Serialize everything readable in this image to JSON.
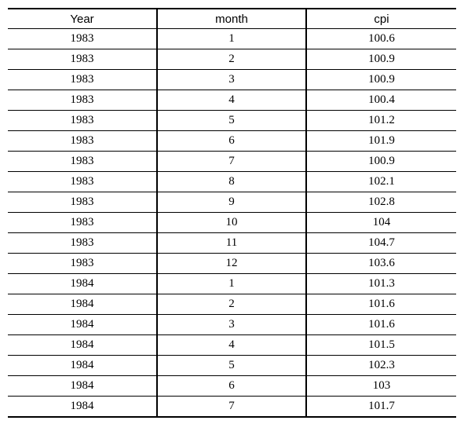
{
  "table": {
    "headers": [
      "Year",
      "month",
      "cpi"
    ],
    "rows": [
      [
        "1983",
        "1",
        "100.6"
      ],
      [
        "1983",
        "2",
        "100.9"
      ],
      [
        "1983",
        "3",
        "100.9"
      ],
      [
        "1983",
        "4",
        "100.4"
      ],
      [
        "1983",
        "5",
        "101.2"
      ],
      [
        "1983",
        "6",
        "101.9"
      ],
      [
        "1983",
        "7",
        "100.9"
      ],
      [
        "1983",
        "8",
        "102.1"
      ],
      [
        "1983",
        "9",
        "102.8"
      ],
      [
        "1983",
        "10",
        "104"
      ],
      [
        "1983",
        "11",
        "104.7"
      ],
      [
        "1983",
        "12",
        "103.6"
      ],
      [
        "1984",
        "1",
        "101.3"
      ],
      [
        "1984",
        "2",
        "101.6"
      ],
      [
        "1984",
        "3",
        "101.6"
      ],
      [
        "1984",
        "4",
        "101.5"
      ],
      [
        "1984",
        "5",
        "102.3"
      ],
      [
        "1984",
        "6",
        "103"
      ],
      [
        "1984",
        "7",
        "101.7"
      ]
    ]
  }
}
